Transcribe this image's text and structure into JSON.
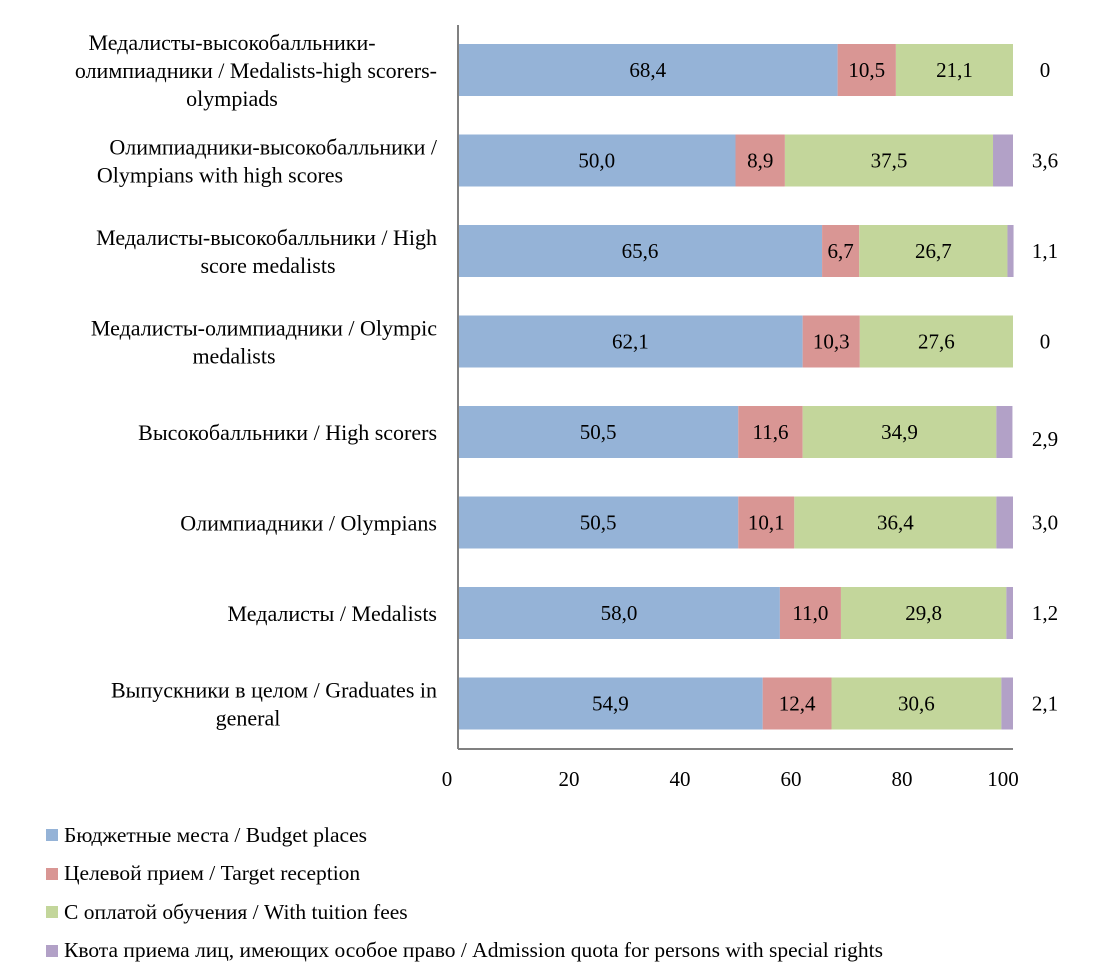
{
  "chart_data": {
    "type": "bar",
    "orientation": "horizontal",
    "stacked": true,
    "title": "",
    "xlabel": "",
    "ylabel": "",
    "xlim": [
      0,
      100
    ],
    "xticks": [
      "0",
      "20",
      "40",
      "60",
      "80",
      "100"
    ],
    "grid": false,
    "legend_position": "bottom-left",
    "categories": [
      "Медалисты-высокобалльники-олимпиадники / Medalists-high scorers-olympiads",
      "Олимпиадники-высокобалльники / Olympians with high scores",
      "Медалисты-высокобалльники / High score medalists",
      "Медалисты-олимпиадники / Olympic medalists",
      "Высокобалльники / High scorers",
      "Олимпиадники / Olympians",
      "Медалисты / Medalists",
      "Выпускники в целом / Graduates in general"
    ],
    "category_lines": [
      [
        "Медалисты-высокобалльники-",
        "олимпиадники / Medalists-high scorers-",
        "olympiads"
      ],
      [
        "Олимпиадники-высокобалльники /",
        "Olympians with high scores"
      ],
      [
        "Медалисты-высокобалльники / High",
        "score medalists"
      ],
      [
        "Медалисты-олимпиадники / Olympic",
        "medalists"
      ],
      [
        "Высокобалльники / High scorers"
      ],
      [
        "Олимпиадники / Olympians"
      ],
      [
        "Медалисты / Medalists"
      ],
      [
        "Выпускники в целом / Graduates in",
        "general"
      ]
    ],
    "series": [
      {
        "name": "Бюджетные места / Budget places",
        "color": "#95B3D7",
        "values": [
          68.4,
          50.0,
          65.6,
          62.1,
          50.5,
          50.5,
          58.0,
          54.9
        ],
        "labels": [
          "68,4",
          "50,0",
          "65,6",
          "62,1",
          "50,5",
          "50,5",
          "58,0",
          "54,9"
        ]
      },
      {
        "name": "Целевой прием / Target reception",
        "color": "#D99694",
        "values": [
          10.5,
          8.9,
          6.7,
          10.3,
          11.6,
          10.1,
          11.0,
          12.4
        ],
        "labels": [
          "10,5",
          "8,9",
          "6,7",
          "10,3",
          "11,6",
          "10,1",
          "11,0",
          "12,4"
        ]
      },
      {
        "name": "С оплатой обучения / With tuition fees",
        "color": "#C3D69B",
        "values": [
          21.1,
          37.5,
          26.7,
          27.6,
          34.9,
          36.4,
          29.8,
          30.6
        ],
        "labels": [
          "21,1",
          "37,5",
          "26,7",
          "27,6",
          "34,9",
          "36,4",
          "29,8",
          "30,6"
        ]
      },
      {
        "name": "Квота приема лиц, имеющих особое право / Admission quota for persons with special rights",
        "color": "#B2A1C7",
        "values": [
          0,
          3.6,
          1.1,
          0,
          2.9,
          3.0,
          1.2,
          2.1
        ],
        "labels": [
          "0",
          "3,6",
          "1,1",
          "0",
          "2,9",
          "3,0",
          "1,2",
          "2,1"
        ]
      }
    ]
  }
}
